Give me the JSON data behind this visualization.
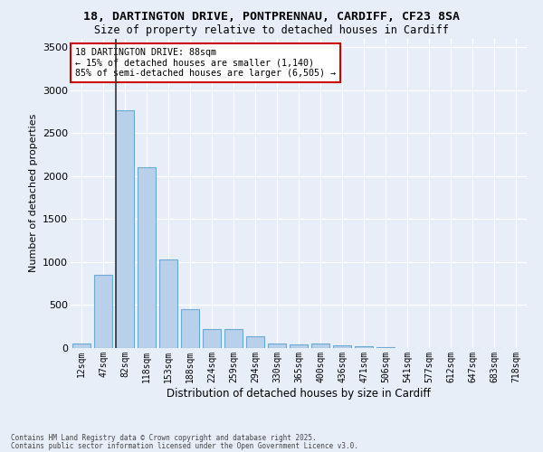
{
  "title1": "18, DARTINGTON DRIVE, PONTPRENNAU, CARDIFF, CF23 8SA",
  "title2": "Size of property relative to detached houses in Cardiff",
  "xlabel": "Distribution of detached houses by size in Cardiff",
  "ylabel": "Number of detached properties",
  "categories": [
    "12sqm",
    "47sqm",
    "82sqm",
    "118sqm",
    "153sqm",
    "188sqm",
    "224sqm",
    "259sqm",
    "294sqm",
    "330sqm",
    "365sqm",
    "400sqm",
    "436sqm",
    "471sqm",
    "506sqm",
    "541sqm",
    "577sqm",
    "612sqm",
    "647sqm",
    "683sqm",
    "718sqm"
  ],
  "bar_heights": [
    55,
    850,
    2760,
    2100,
    1030,
    450,
    220,
    220,
    135,
    55,
    45,
    55,
    30,
    18,
    10,
    5,
    3,
    2,
    1,
    1,
    0
  ],
  "bar_color": "#b8d0ea",
  "bar_edge_color": "#6aaad4",
  "vline_color": "#333333",
  "annotation_text": "18 DARTINGTON DRIVE: 88sqm\n← 15% of detached houses are smaller (1,140)\n85% of semi-detached houses are larger (6,505) →",
  "annotation_box_color": "#ffffff",
  "annotation_edge_color": "#cc0000",
  "background_color": "#e8eef8",
  "grid_color": "#ffffff",
  "footer1": "Contains HM Land Registry data © Crown copyright and database right 2025.",
  "footer2": "Contains public sector information licensed under the Open Government Licence v3.0.",
  "ylim": [
    0,
    3600
  ],
  "yticks": [
    0,
    500,
    1000,
    1500,
    2000,
    2500,
    3000,
    3500
  ]
}
